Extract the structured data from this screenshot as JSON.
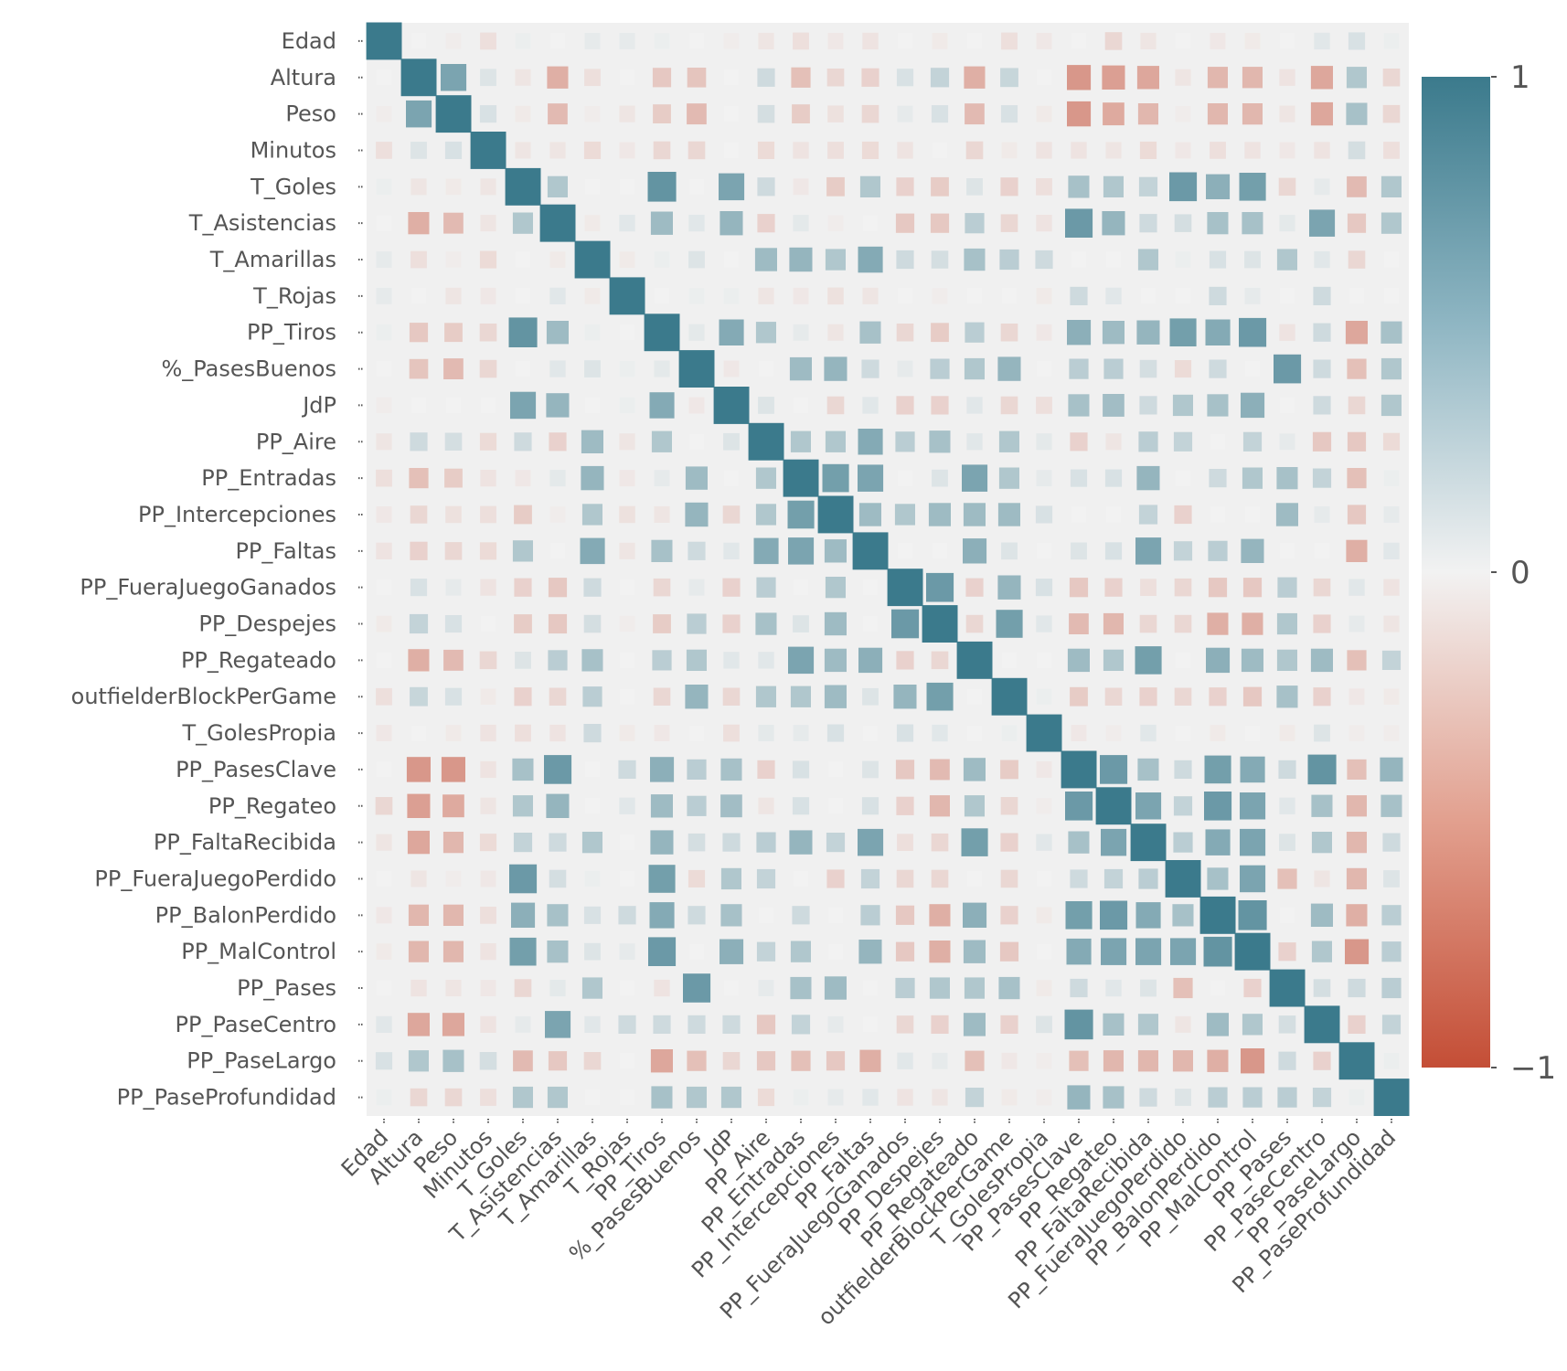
{
  "chart_data": {
    "type": "heatmap",
    "variables": [
      "Edad",
      "Altura",
      "Peso",
      "Minutos",
      "T_Goles",
      "T_Asistencias",
      "T_Amarillas",
      "T_Rojas",
      "PP_Tiros",
      "%_PasesBuenos",
      "JdP",
      "PP_Aire",
      "PP_Entradas",
      "PP_Intercepciones",
      "PP_Faltas",
      "PP_FueraJuegoGanados",
      "PP_Despejes",
      "PP_Regateado",
      "outfielderBlockPerGame",
      "T_GolesPropia",
      "PP_PasesClave",
      "PP_Regateo",
      "PP_FaltaRecibida",
      "PP_FueraJuegoPerdido",
      "PP_BalonPerdido",
      "PP_MalControl",
      "PP_Pases",
      "PP_PaseCentro",
      "PP_PaseLargo",
      "PP_PaseProfundidad"
    ],
    "corr_lower_triangle": [
      [
        1
      ],
      [
        0.0,
        1
      ],
      [
        -0.02,
        0.6,
        1
      ],
      [
        -0.08,
        0.08,
        0.1,
        1
      ],
      [
        0.02,
        -0.05,
        -0.03,
        -0.05,
        1
      ],
      [
        0.0,
        -0.35,
        -0.28,
        -0.05,
        0.3,
        1
      ],
      [
        0.04,
        -0.08,
        -0.02,
        -0.1,
        0.0,
        -0.03,
        1
      ],
      [
        0.04,
        0.0,
        -0.05,
        -0.04,
        0.0,
        0.06,
        -0.03,
        1
      ],
      [
        0.02,
        -0.2,
        -0.18,
        -0.12,
        0.75,
        0.4,
        0.02,
        0.0,
        1
      ],
      [
        0.0,
        -0.22,
        -0.28,
        -0.12,
        0.0,
        0.06,
        0.08,
        0.02,
        0.05,
        1
      ],
      [
        -0.02,
        0.0,
        0.0,
        0.0,
        0.6,
        0.45,
        0.0,
        0.02,
        0.55,
        -0.04,
        1
      ],
      [
        -0.05,
        0.15,
        0.12,
        -0.1,
        0.15,
        -0.15,
        0.4,
        -0.05,
        0.3,
        0.0,
        0.08,
        1
      ],
      [
        -0.08,
        -0.25,
        -0.18,
        -0.06,
        -0.04,
        0.05,
        0.45,
        -0.04,
        0.04,
        0.4,
        0.0,
        0.3,
        1
      ],
      [
        -0.04,
        -0.12,
        -0.07,
        -0.08,
        -0.18,
        -0.02,
        0.3,
        -0.07,
        -0.05,
        0.45,
        -0.12,
        0.3,
        0.65,
        1
      ],
      [
        -0.06,
        -0.15,
        -0.12,
        -0.1,
        0.3,
        0.0,
        0.55,
        -0.05,
        0.35,
        0.15,
        0.06,
        0.55,
        0.6,
        0.4,
        1
      ],
      [
        0.0,
        0.1,
        0.04,
        -0.06,
        -0.15,
        -0.2,
        0.15,
        0.0,
        -0.12,
        0.04,
        -0.15,
        0.25,
        0.0,
        0.3,
        0.0,
        1
      ],
      [
        -0.03,
        0.2,
        0.1,
        0.0,
        -0.18,
        -0.2,
        0.12,
        -0.02,
        -0.18,
        0.25,
        -0.15,
        0.35,
        0.08,
        0.4,
        0.0,
        0.7,
        1
      ],
      [
        0.0,
        -0.35,
        -0.28,
        -0.12,
        0.08,
        0.25,
        0.35,
        0.0,
        0.25,
        0.3,
        0.06,
        0.06,
        0.6,
        0.4,
        0.5,
        -0.15,
        -0.12,
        1
      ],
      [
        -0.08,
        0.18,
        0.1,
        -0.03,
        -0.15,
        -0.12,
        0.25,
        0.0,
        -0.12,
        0.45,
        -0.12,
        0.3,
        0.3,
        0.4,
        0.08,
        0.45,
        0.65,
        0.0,
        1
      ],
      [
        -0.04,
        0.0,
        -0.03,
        -0.06,
        -0.08,
        -0.06,
        0.15,
        -0.03,
        -0.04,
        0.0,
        -0.08,
        0.05,
        0.04,
        0.1,
        0.0,
        0.1,
        0.06,
        0.0,
        0.02,
        1
      ],
      [
        0.0,
        -0.5,
        -0.5,
        -0.06,
        0.35,
        0.7,
        0.0,
        0.15,
        0.5,
        0.25,
        0.35,
        -0.15,
        0.1,
        0.0,
        0.08,
        -0.2,
        -0.28,
        0.4,
        -0.18,
        -0.04,
        1
      ],
      [
        -0.12,
        -0.45,
        -0.38,
        -0.05,
        0.3,
        0.45,
        0.0,
        0.06,
        0.4,
        0.25,
        0.38,
        -0.05,
        0.1,
        0.0,
        0.1,
        -0.15,
        -0.3,
        0.3,
        -0.12,
        -0.02,
        0.7,
        1
      ],
      [
        -0.05,
        -0.4,
        -0.3,
        -0.1,
        0.2,
        0.15,
        0.3,
        0.0,
        0.45,
        0.12,
        0.15,
        0.25,
        0.45,
        0.2,
        0.6,
        -0.08,
        -0.12,
        0.65,
        -0.15,
        0.06,
        0.35,
        0.6,
        1
      ],
      [
        0.0,
        -0.05,
        -0.02,
        -0.04,
        0.7,
        0.12,
        0.02,
        0.0,
        0.65,
        -0.1,
        0.3,
        0.2,
        0.0,
        -0.15,
        0.2,
        -0.12,
        -0.12,
        0.0,
        -0.12,
        0.0,
        0.15,
        0.2,
        0.25,
        1
      ],
      [
        -0.04,
        -0.3,
        -0.3,
        -0.08,
        0.5,
        0.35,
        0.1,
        0.15,
        0.55,
        0.15,
        0.35,
        0.0,
        0.15,
        0.0,
        0.25,
        -0.2,
        -0.35,
        0.5,
        -0.15,
        -0.03,
        0.65,
        0.7,
        0.55,
        0.35,
        1
      ],
      [
        -0.03,
        -0.3,
        -0.3,
        -0.06,
        0.65,
        0.35,
        0.08,
        0.04,
        0.7,
        0.0,
        0.5,
        0.2,
        0.3,
        0.0,
        0.45,
        -0.2,
        -0.35,
        0.4,
        -0.2,
        0.0,
        0.55,
        0.6,
        0.6,
        0.6,
        0.75,
        1
      ],
      [
        0.0,
        -0.06,
        -0.05,
        -0.04,
        -0.12,
        0.05,
        0.3,
        0.0,
        -0.06,
        0.7,
        0.0,
        0.04,
        0.35,
        0.4,
        0.0,
        0.25,
        0.3,
        0.3,
        0.35,
        -0.03,
        0.15,
        0.06,
        0.08,
        -0.25,
        0.0,
        -0.15,
        1
      ],
      [
        0.06,
        -0.4,
        -0.4,
        -0.06,
        0.04,
        0.6,
        0.06,
        0.15,
        0.15,
        0.15,
        0.15,
        -0.2,
        0.2,
        0.04,
        0.0,
        -0.12,
        -0.15,
        0.4,
        -0.15,
        0.08,
        0.75,
        0.35,
        0.3,
        -0.05,
        0.4,
        0.3,
        0.12,
        1
      ],
      [
        0.1,
        0.3,
        0.35,
        0.12,
        -0.28,
        -0.2,
        -0.12,
        0.0,
        -0.4,
        -0.25,
        -0.12,
        -0.2,
        -0.25,
        -0.2,
        -0.35,
        0.06,
        0.04,
        -0.25,
        -0.04,
        -0.02,
        -0.25,
        -0.3,
        -0.3,
        -0.3,
        -0.35,
        -0.5,
        0.15,
        -0.15,
        1
      ],
      [
        0.02,
        -0.12,
        -0.12,
        -0.08,
        0.3,
        0.3,
        0.0,
        0.0,
        0.35,
        0.3,
        0.3,
        -0.1,
        0.02,
        0.04,
        0.06,
        -0.06,
        -0.05,
        0.2,
        -0.03,
        -0.02,
        0.45,
        0.35,
        0.15,
        0.08,
        0.25,
        0.25,
        0.25,
        0.2,
        0.02,
        1
      ]
    ],
    "colorbar": {
      "ticks": [
        1,
        0,
        -1
      ],
      "tick_labels": [
        "1",
        "0",
        "−1"
      ],
      "low_color": "#c44e36",
      "mid_color": "#f2f2f2",
      "high_color": "#3b7a8c"
    },
    "vmin": -1,
    "vmax": 1,
    "mask_upper": false,
    "cell_size_encodes_magnitude": true
  }
}
